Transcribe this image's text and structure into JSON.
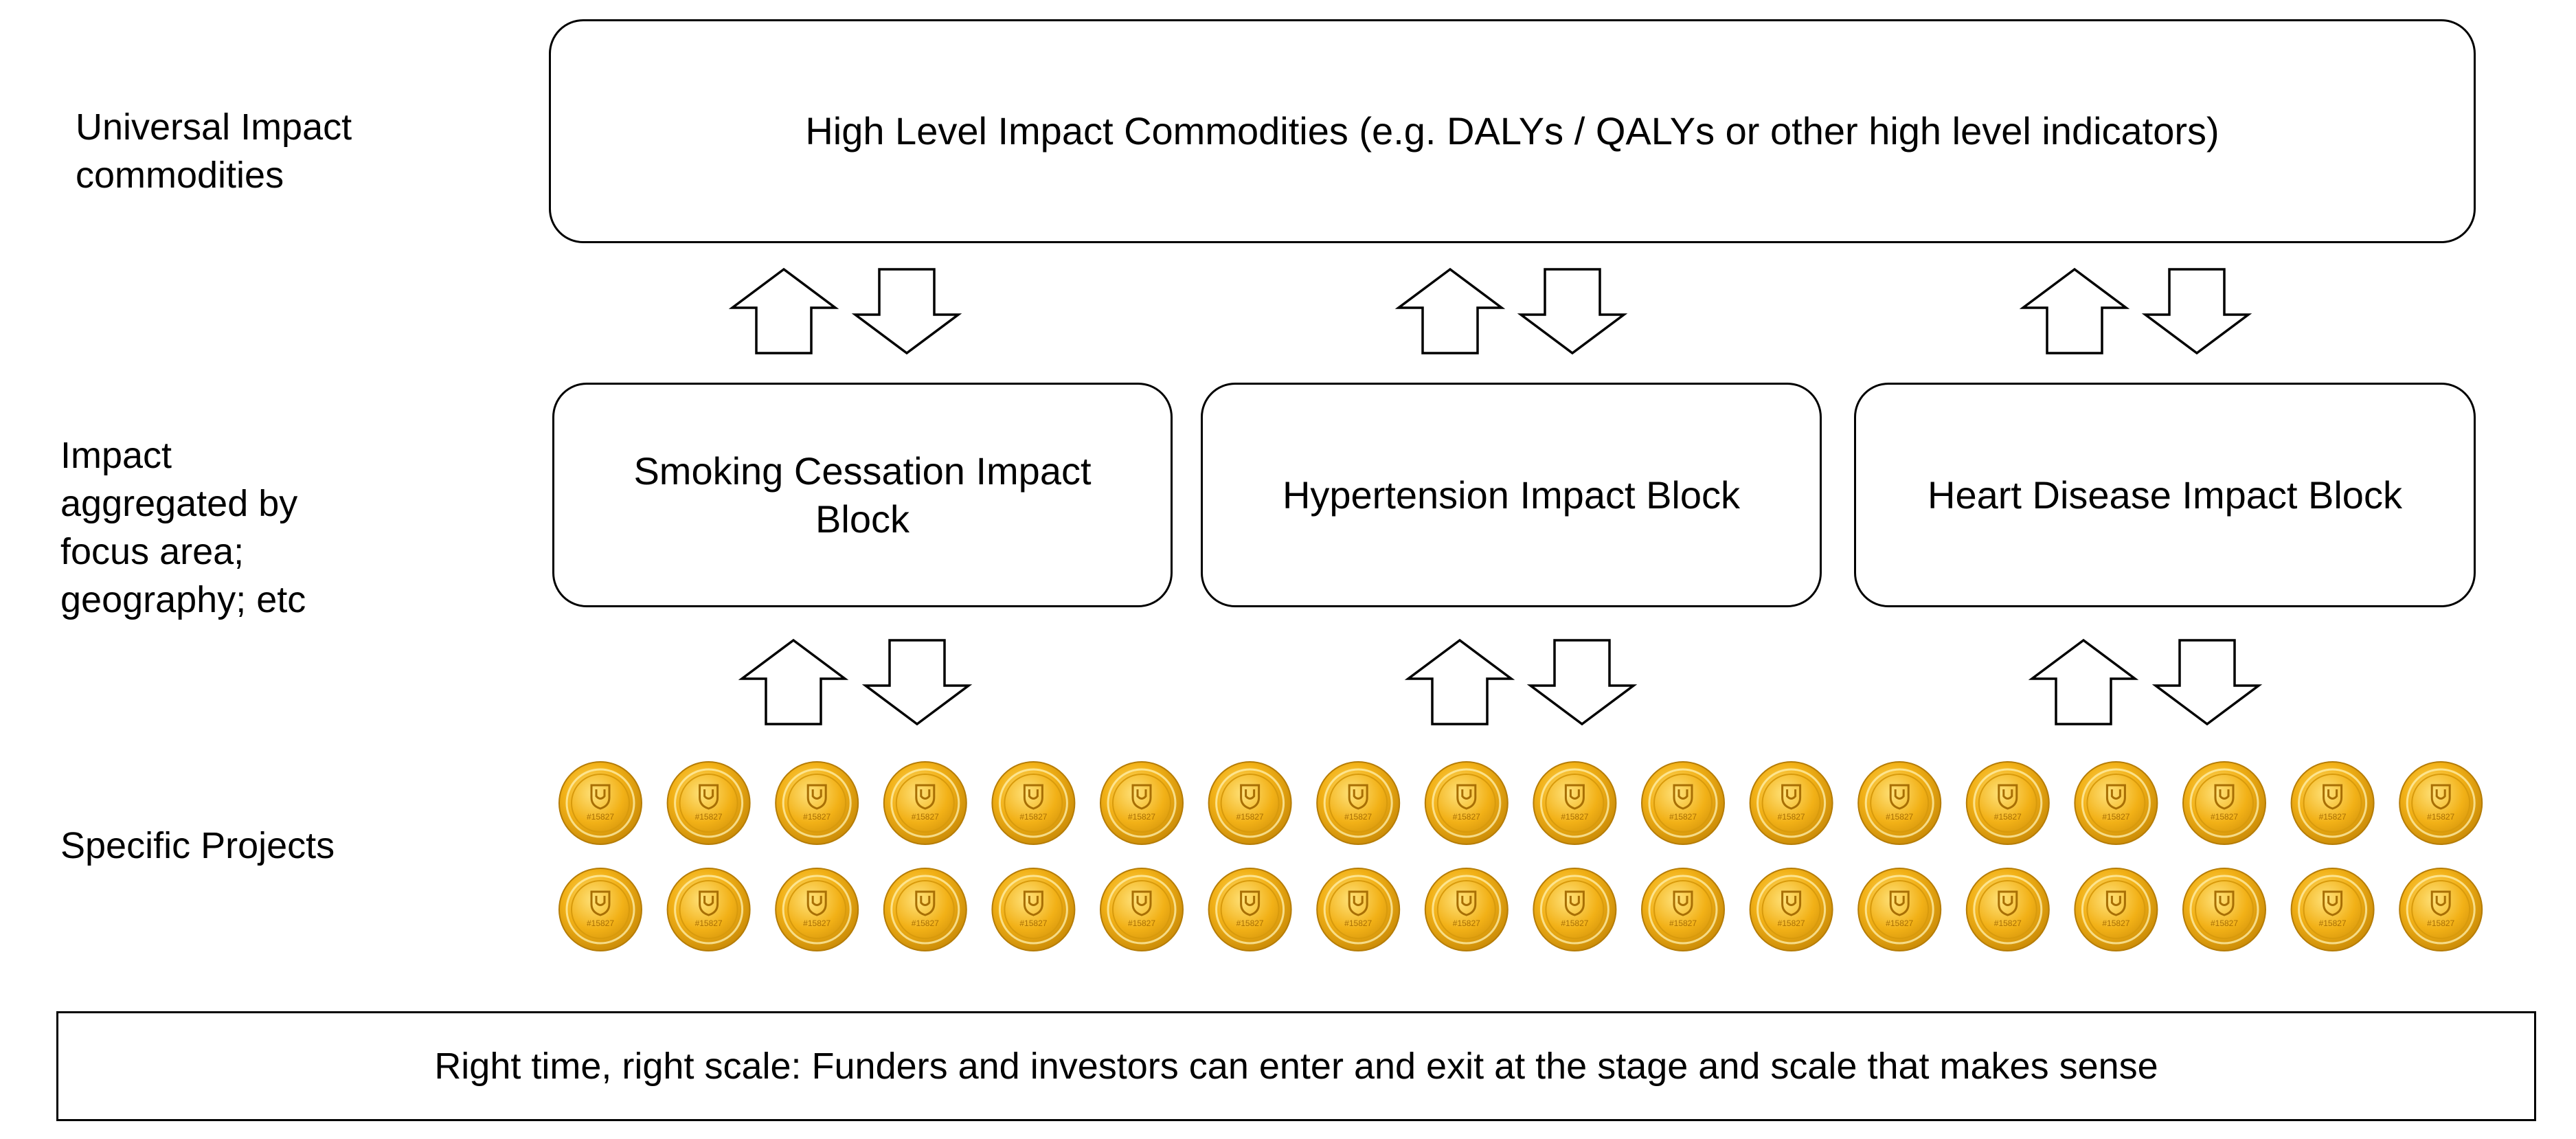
{
  "row_labels": {
    "universal": "Universal Impact\ncommodities",
    "aggregated": "Impact\naggregated by\nfocus area;\ngeography; etc",
    "projects": "Specific Projects"
  },
  "top_box": "High Level Impact Commodities (e.g. DALYs / QALYs or other high level indicators)",
  "blocks": [
    "Smoking Cessation Impact Block",
    "Hypertension Impact Block",
    "Heart Disease Impact Block"
  ],
  "bottom_banner": "Right time, right scale: Funders and investors can enter and exit at the stage and scale that makes sense",
  "coins": {
    "rows": 2,
    "per_row": 18,
    "color": "#f2b117",
    "stamp_text": "#15827"
  },
  "arrow_fill": "#ffffff",
  "arrow_stroke": "#000000"
}
